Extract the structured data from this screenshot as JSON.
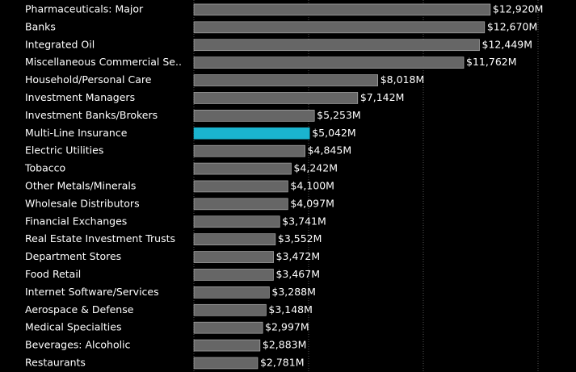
{
  "chart_data": {
    "type": "barh",
    "categories": [
      "Pharmaceuticals: Major",
      "Banks",
      "Integrated Oil",
      "Miscellaneous Commercial Se..",
      "Household/Personal Care",
      "Investment Managers",
      "Investment Banks/Brokers",
      "Multi-Line Insurance",
      "Electric Utilities",
      "Tobacco",
      "Other Metals/Minerals",
      "Wholesale Distributors",
      "Financial Exchanges",
      "Real Estate Investment Trusts",
      "Department Stores",
      "Food Retail",
      "Internet Software/Services",
      "Aerospace & Defense",
      "Medical Specialties",
      "Beverages: Alcoholic",
      "Restaurants"
    ],
    "values": [
      12920,
      12670,
      12449,
      11762,
      8018,
      7142,
      5253,
      5042,
      4845,
      4242,
      4100,
      4097,
      3741,
      3552,
      3472,
      3467,
      3288,
      3148,
      2997,
      2883,
      2781
    ],
    "value_labels": [
      "$12,920M",
      "$12,670M",
      "$12,449M",
      "$11,762M",
      "$8,018M",
      "$7,142M",
      "$5,253M",
      "$5,042M",
      "$4,845M",
      "$4,242M",
      "$4,100M",
      "$4,097M",
      "$3,741M",
      "$3,552M",
      "$3,472M",
      "$3,467M",
      "$3,288M",
      "$3,148M",
      "$2,997M",
      "$2,883M",
      "$2,781M"
    ],
    "colors": [
      "#666666",
      "#666666",
      "#666666",
      "#666666",
      "#666666",
      "#666666",
      "#666666",
      "#1ab4cf",
      "#666666",
      "#666666",
      "#666666",
      "#666666",
      "#666666",
      "#666666",
      "#666666",
      "#666666",
      "#666666",
      "#666666",
      "#666666",
      "#666666",
      "#666666"
    ],
    "xlim": [
      0,
      16620
    ],
    "xticks": [
      0,
      5000,
      10000,
      15000
    ],
    "grid": true
  }
}
